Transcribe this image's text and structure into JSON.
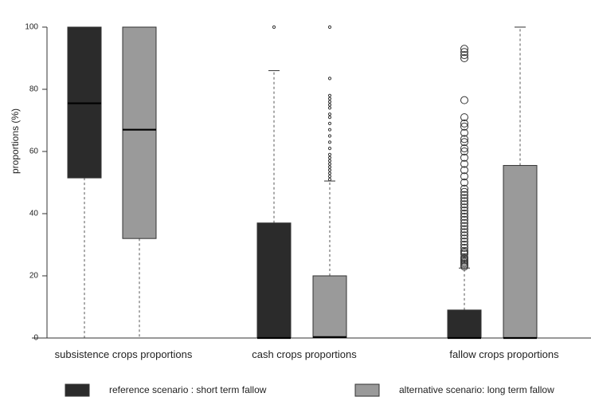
{
  "chart_data": {
    "type": "boxplot",
    "title": "",
    "xlabel": "",
    "ylabel": "proportions (%)",
    "ylim": [
      0,
      100
    ],
    "yticks": [
      0,
      20,
      40,
      60,
      80,
      100
    ],
    "grid": false,
    "legend_position": "bottom",
    "categories": [
      "subsistence crops proportions",
      "cash crops proportions",
      "fallow crops proportions"
    ],
    "series": [
      {
        "name": "reference scenario : short term fallow",
        "color": "#2b2b2b",
        "boxes": [
          {
            "min": 0,
            "q1": 51.5,
            "median": 75.5,
            "q3": 100,
            "max": 100,
            "outliers": []
          },
          {
            "min": 0,
            "q1": 0,
            "median": 0,
            "q3": 37,
            "max": 86,
            "outliers": [
              100
            ]
          },
          {
            "min": 0,
            "q1": 0,
            "median": 0,
            "q3": 9,
            "max": 22.5,
            "outliers": [
              23,
              23.5,
              24,
              24.5,
              25,
              25.5,
              26,
              27,
              27.5,
              28,
              29,
              30,
              31,
              32,
              33,
              34,
              35,
              36,
              37,
              38,
              39,
              40,
              41,
              42,
              43,
              44,
              45,
              46,
              47,
              48,
              50,
              52,
              54,
              56,
              58,
              60,
              61,
              63,
              64,
              66,
              68,
              69,
              71,
              76.5,
              90,
              91,
              92,
              93
            ]
          }
        ]
      },
      {
        "name": "alternative scenario: long term fallow",
        "color": "#9a9a9a",
        "boxes": [
          {
            "min": 0,
            "q1": 32,
            "median": 67,
            "q3": 100,
            "max": 100,
            "outliers": []
          },
          {
            "min": 0,
            "q1": 0,
            "median": 0.3,
            "q3": 20,
            "max": 50.5,
            "outliers": [
              51,
              52,
              53,
              54,
              55,
              56,
              57,
              58,
              59,
              61,
              63,
              65,
              67,
              69,
              71,
              72,
              74,
              75,
              76,
              77,
              78,
              83.5,
              100
            ]
          },
          {
            "min": 0,
            "q1": 0,
            "median": 0,
            "q3": 55.5,
            "max": 100,
            "outliers": []
          }
        ]
      }
    ]
  }
}
